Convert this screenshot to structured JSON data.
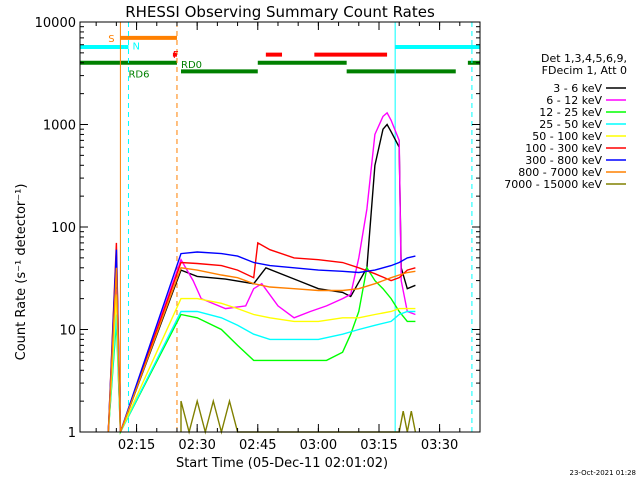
{
  "chart_data": {
    "type": "line",
    "title": "RHESSI Observing Summary Count Rates",
    "xlabel": "Start Time (05-Dec-11 02:01:02)",
    "ylabel": "Count Rate (s⁻¹ detector⁻¹)",
    "yscale": "log",
    "ylim": [
      1,
      10000
    ],
    "xlim": [
      "02:01",
      "03:40"
    ],
    "x_ticks": [
      "02:15",
      "02:30",
      "02:45",
      "03:00",
      "03:15",
      "03:30"
    ],
    "y_ticks": [
      "1",
      "10",
      "100",
      "1000",
      "10000"
    ],
    "footer_date": "23-Oct-2021 01:28",
    "legend_header": [
      "Det 1,3,4,5,6,9,",
      "FDecim 1, Att 0"
    ],
    "annotations": {
      "saa": "S",
      "night": "N",
      "flare": "F",
      "rd6": "RD6",
      "rd0": "RD0"
    },
    "colors": {
      "3-6": "#000000",
      "6-12": "#ff00ff",
      "12-25": "#00ff00",
      "25-50": "#00ffff",
      "50-100": "#ffff00",
      "100-300": "#ff0000",
      "300-800": "#0000ff",
      "800-7000": "#ff8000",
      "7000-15000": "#808000",
      "saa_bar": "#ff8000",
      "night_bar": "#00ffff",
      "flare_bar": "#ff0000",
      "decim_bar": "#008000"
    },
    "series": [
      {
        "name": "3 - 6 keV",
        "color": "#000000",
        "points": [
          [
            "02:08",
            1
          ],
          [
            "02:10",
            30
          ],
          [
            "02:11",
            1
          ],
          [
            "02:26",
            38
          ],
          [
            "02:30",
            33
          ],
          [
            "02:37",
            31
          ],
          [
            "02:44",
            28
          ],
          [
            "02:47",
            40
          ],
          [
            "02:55",
            30
          ],
          [
            "03:00",
            25
          ],
          [
            "03:06",
            23
          ],
          [
            "03:08",
            21
          ],
          [
            "03:12",
            40
          ],
          [
            "03:14",
            400
          ],
          [
            "03:16",
            900
          ],
          [
            "03:17",
            1000
          ],
          [
            "03:18",
            850
          ],
          [
            "03:20",
            600
          ],
          [
            "03:20.5",
            40
          ],
          [
            "03:22",
            25
          ],
          [
            "03:24",
            27
          ]
        ]
      },
      {
        "name": "6 - 12 keV",
        "color": "#ff00ff",
        "points": [
          [
            "02:08",
            1
          ],
          [
            "02:10",
            25
          ],
          [
            "02:11",
            1
          ],
          [
            "02:26",
            48
          ],
          [
            "02:29",
            30
          ],
          [
            "02:31",
            20
          ],
          [
            "02:37",
            16
          ],
          [
            "02:42",
            17
          ],
          [
            "02:44",
            25
          ],
          [
            "02:46",
            28
          ],
          [
            "02:50",
            17
          ],
          [
            "02:54",
            13
          ],
          [
            "02:58",
            15
          ],
          [
            "03:02",
            17
          ],
          [
            "03:06",
            20
          ],
          [
            "03:08",
            22
          ],
          [
            "03:10",
            50
          ],
          [
            "03:12",
            150
          ],
          [
            "03:14",
            800
          ],
          [
            "03:16",
            1200
          ],
          [
            "03:17",
            1300
          ],
          [
            "03:18",
            1100
          ],
          [
            "03:20",
            700
          ],
          [
            "03:20.5",
            30
          ],
          [
            "03:22",
            15
          ],
          [
            "03:24",
            14
          ]
        ]
      },
      {
        "name": "12 - 25 keV",
        "color": "#00ff00",
        "points": [
          [
            "02:08",
            1
          ],
          [
            "02:10",
            12
          ],
          [
            "02:11",
            1
          ],
          [
            "02:26",
            14
          ],
          [
            "02:30",
            13
          ],
          [
            "02:36",
            10
          ],
          [
            "02:40",
            7
          ],
          [
            "02:44",
            5
          ],
          [
            "02:48",
            5
          ],
          [
            "02:52",
            5
          ],
          [
            "02:58",
            5
          ],
          [
            "03:02",
            5
          ],
          [
            "03:06",
            6
          ],
          [
            "03:08",
            9
          ],
          [
            "03:10",
            15
          ],
          [
            "03:12",
            40
          ],
          [
            "03:14",
            30
          ],
          [
            "03:16",
            25
          ],
          [
            "03:18",
            20
          ],
          [
            "03:20",
            15
          ],
          [
            "03:22",
            12
          ],
          [
            "03:24",
            12
          ]
        ]
      },
      {
        "name": "25 - 50 keV",
        "color": "#00ffff",
        "points": [
          [
            "02:08",
            1
          ],
          [
            "02:10",
            14
          ],
          [
            "02:11",
            1
          ],
          [
            "02:26",
            15
          ],
          [
            "02:30",
            15
          ],
          [
            "02:36",
            13
          ],
          [
            "02:40",
            11
          ],
          [
            "02:44",
            9
          ],
          [
            "02:48",
            8
          ],
          [
            "02:54",
            8
          ],
          [
            "03:00",
            8
          ],
          [
            "03:06",
            9
          ],
          [
            "03:10",
            10
          ],
          [
            "03:14",
            11
          ],
          [
            "03:18",
            12
          ],
          [
            "03:20",
            14
          ],
          [
            "03:22",
            15
          ],
          [
            "03:24",
            15
          ]
        ]
      },
      {
        "name": "50 - 100 keV",
        "color": "#ffff00",
        "points": [
          [
            "02:08",
            1
          ],
          [
            "02:10",
            22
          ],
          [
            "02:11",
            1
          ],
          [
            "02:26",
            20
          ],
          [
            "02:30",
            20
          ],
          [
            "02:36",
            18
          ],
          [
            "02:40",
            16
          ],
          [
            "02:44",
            14
          ],
          [
            "02:48",
            13
          ],
          [
            "02:54",
            12
          ],
          [
            "03:00",
            12
          ],
          [
            "03:06",
            13
          ],
          [
            "03:10",
            13
          ],
          [
            "03:14",
            14
          ],
          [
            "03:18",
            15
          ],
          [
            "03:20",
            16
          ],
          [
            "03:22",
            16
          ],
          [
            "03:24",
            16
          ]
        ]
      },
      {
        "name": "100 - 300 keV",
        "color": "#ff0000",
        "points": [
          [
            "02:08",
            1
          ],
          [
            "02:10",
            70
          ],
          [
            "02:11",
            1
          ],
          [
            "02:26",
            45
          ],
          [
            "02:30",
            44
          ],
          [
            "02:36",
            42
          ],
          [
            "02:40",
            38
          ],
          [
            "02:44",
            32
          ],
          [
            "02:45",
            70
          ],
          [
            "02:48",
            60
          ],
          [
            "02:54",
            50
          ],
          [
            "03:00",
            48
          ],
          [
            "03:06",
            45
          ],
          [
            "03:10",
            40
          ],
          [
            "03:14",
            35
          ],
          [
            "03:18",
            30
          ],
          [
            "03:20",
            32
          ],
          [
            "03:22",
            38
          ],
          [
            "03:24",
            40
          ]
        ]
      },
      {
        "name": "300 - 800 keV",
        "color": "#0000ff",
        "points": [
          [
            "02:08",
            1
          ],
          [
            "02:10",
            60
          ],
          [
            "02:11",
            1
          ],
          [
            "02:26",
            55
          ],
          [
            "02:30",
            57
          ],
          [
            "02:36",
            55
          ],
          [
            "02:40",
            52
          ],
          [
            "02:44",
            45
          ],
          [
            "02:48",
            42
          ],
          [
            "02:54",
            40
          ],
          [
            "03:00",
            38
          ],
          [
            "03:06",
            37
          ],
          [
            "03:10",
            36
          ],
          [
            "03:14",
            38
          ],
          [
            "03:18",
            42
          ],
          [
            "03:20",
            45
          ],
          [
            "03:22",
            50
          ],
          [
            "03:24",
            52
          ]
        ]
      },
      {
        "name": "800 - 7000 keV",
        "color": "#ff8000",
        "points": [
          [
            "02:08",
            1
          ],
          [
            "02:10",
            40
          ],
          [
            "02:11",
            1
          ],
          [
            "02:26",
            40
          ],
          [
            "02:30",
            38
          ],
          [
            "02:36",
            34
          ],
          [
            "02:40",
            32
          ],
          [
            "02:44",
            28
          ],
          [
            "02:48",
            26
          ],
          [
            "02:54",
            25
          ],
          [
            "03:00",
            24
          ],
          [
            "03:06",
            24
          ],
          [
            "03:10",
            25
          ],
          [
            "03:14",
            28
          ],
          [
            "03:18",
            32
          ],
          [
            "03:20",
            34
          ],
          [
            "03:22",
            36
          ],
          [
            "03:24",
            37
          ]
        ]
      },
      {
        "name": "7000 - 15000 keV",
        "color": "#808000",
        "points": [
          [
            "02:26",
            1
          ],
          [
            "02:26",
            2
          ],
          [
            "02:28",
            1
          ],
          [
            "02:30",
            2
          ],
          [
            "02:32",
            1
          ],
          [
            "02:34",
            2
          ],
          [
            "02:36",
            1
          ],
          [
            "02:38",
            2
          ],
          [
            "02:40",
            1
          ],
          [
            "03:20",
            1
          ],
          [
            "03:21",
            1.6
          ],
          [
            "03:22",
            1
          ],
          [
            "03:23",
            1.6
          ],
          [
            "03:24",
            1
          ]
        ]
      }
    ],
    "flag_bars": [
      {
        "name": "saa",
        "color": "#ff8000",
        "y": 7000,
        "segments": [
          [
            "02:11",
            "02:25"
          ]
        ]
      },
      {
        "name": "night",
        "color": "#00ffff",
        "y": 5700,
        "segments": [
          [
            "02:01",
            "02:12"
          ],
          [
            "02:12",
            "02:13"
          ],
          [
            "03:19",
            "03:40"
          ]
        ]
      },
      {
        "name": "flare",
        "color": "#ff0000",
        "y": 4800,
        "segments": [
          [
            "02:24",
            "02:25"
          ],
          [
            "02:47",
            "02:51"
          ],
          [
            "02:59",
            "03:17"
          ]
        ]
      },
      {
        "name": "rd6",
        "color": "#008000",
        "y": 4000,
        "segments": [
          [
            "02:01",
            "02:25"
          ],
          [
            "02:45",
            "03:07"
          ],
          [
            "03:37",
            "03:40"
          ]
        ]
      },
      {
        "name": "rd0",
        "color": "#008000",
        "y": 3300,
        "segments": [
          [
            "02:26",
            "02:45"
          ],
          [
            "03:07",
            "03:34"
          ]
        ]
      }
    ],
    "vertical_markers": [
      {
        "color": "#ff8000",
        "style": "solid",
        "x": "02:11"
      },
      {
        "color": "#ff8000",
        "style": "dashed",
        "x": "02:25"
      },
      {
        "color": "#00ffff",
        "style": "solid",
        "x": "02:01"
      },
      {
        "color": "#00ffff",
        "style": "solid",
        "x": "03:19"
      },
      {
        "color": "#00ffff",
        "style": "dashed",
        "x": "02:13"
      },
      {
        "color": "#00ffff",
        "style": "dashed",
        "x": "03:38"
      }
    ]
  }
}
